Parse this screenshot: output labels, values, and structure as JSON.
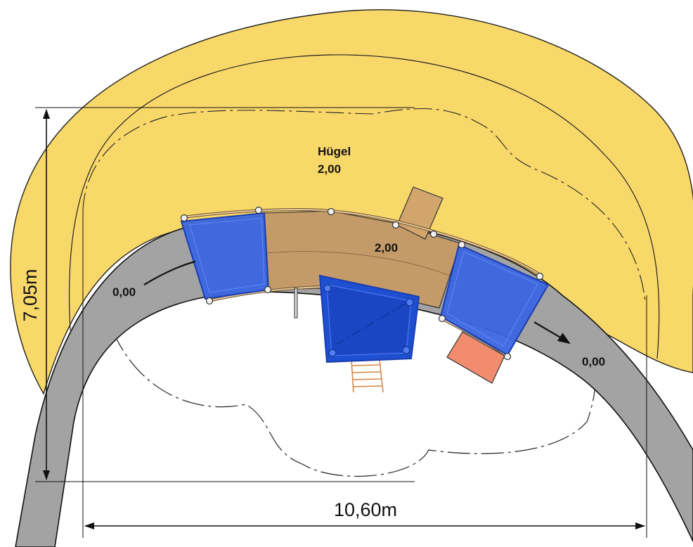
{
  "hill": {
    "name": "Hügel",
    "height": "2,00"
  },
  "bridge": {
    "level": "2,00"
  },
  "path": {
    "start_level": "0,00",
    "end_level": "0,00"
  },
  "dimensions": {
    "height": "7,05m",
    "width": "10,60m"
  },
  "colors": {
    "hill": "#F9D86A",
    "path": "#A3A3A3",
    "ramp": "#3A66E0",
    "deck": "#C49A68",
    "tower": "#1E4FD0",
    "slide": "#F18C6E",
    "ladder": "#D7884A"
  }
}
